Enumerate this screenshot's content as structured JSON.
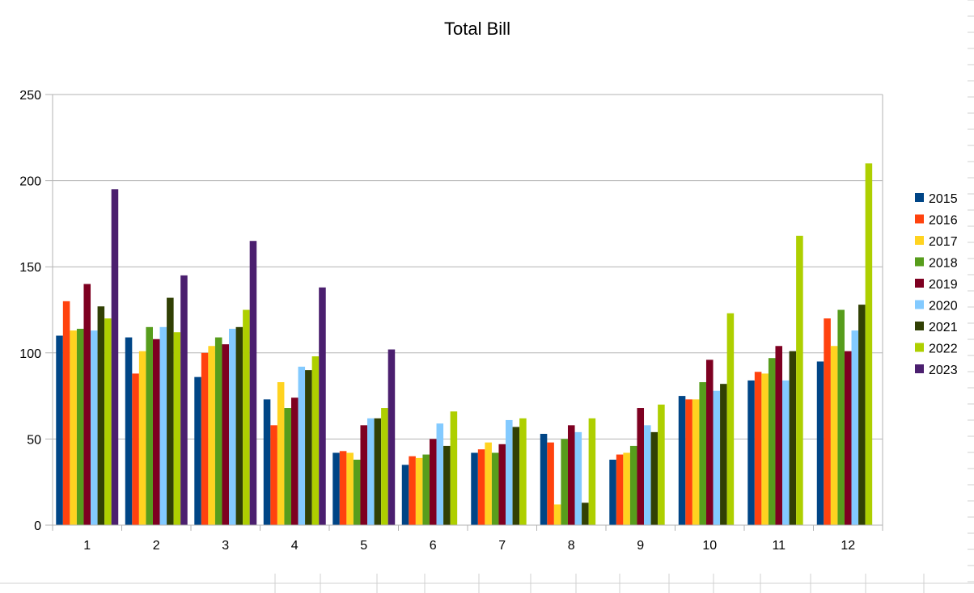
{
  "colors": {
    "2015": "#004586",
    "2016": "#ff420e",
    "2017": "#ffd320",
    "2018": "#579d1c",
    "2019": "#7e0021",
    "2020": "#83caff",
    "2021": "#314004",
    "2022": "#aecf00",
    "2023": "#4b1f6f"
  },
  "chart_data": {
    "type": "bar",
    "title": "Total Bill",
    "xlabel": "",
    "ylabel": "",
    "ylim": [
      0,
      250
    ],
    "yticks": [
      "0",
      "50",
      "100",
      "150",
      "200",
      "250"
    ],
    "grid": true,
    "legend_position": "right",
    "categories": [
      "1",
      "2",
      "3",
      "4",
      "5",
      "6",
      "7",
      "8",
      "9",
      "10",
      "11",
      "12"
    ],
    "series": [
      {
        "name": "2015",
        "values": [
          110,
          109,
          86,
          73,
          42,
          35,
          42,
          53,
          38,
          75,
          84,
          95
        ]
      },
      {
        "name": "2016",
        "values": [
          130,
          88,
          100,
          58,
          43,
          40,
          44,
          48,
          41,
          73,
          89,
          120
        ]
      },
      {
        "name": "2017",
        "values": [
          113,
          101,
          104,
          83,
          42,
          39,
          48,
          12,
          42,
          73,
          88,
          104
        ]
      },
      {
        "name": "2018",
        "values": [
          114,
          115,
          109,
          68,
          38,
          41,
          42,
          50,
          46,
          83,
          97,
          125
        ]
      },
      {
        "name": "2019",
        "values": [
          140,
          108,
          105,
          74,
          58,
          50,
          47,
          58,
          68,
          96,
          104,
          101
        ]
      },
      {
        "name": "2020",
        "values": [
          113,
          115,
          114,
          92,
          62,
          59,
          61,
          54,
          58,
          78,
          84,
          113
        ]
      },
      {
        "name": "2021",
        "values": [
          127,
          132,
          115,
          90,
          62,
          46,
          57,
          13,
          54,
          82,
          101,
          128
        ]
      },
      {
        "name": "2022",
        "values": [
          120,
          112,
          125,
          98,
          68,
          66,
          62,
          62,
          70,
          123,
          168,
          210
        ]
      },
      {
        "name": "2023",
        "values": [
          195,
          145,
          165,
          138,
          102,
          null,
          null,
          null,
          null,
          null,
          null,
          null
        ]
      }
    ]
  }
}
